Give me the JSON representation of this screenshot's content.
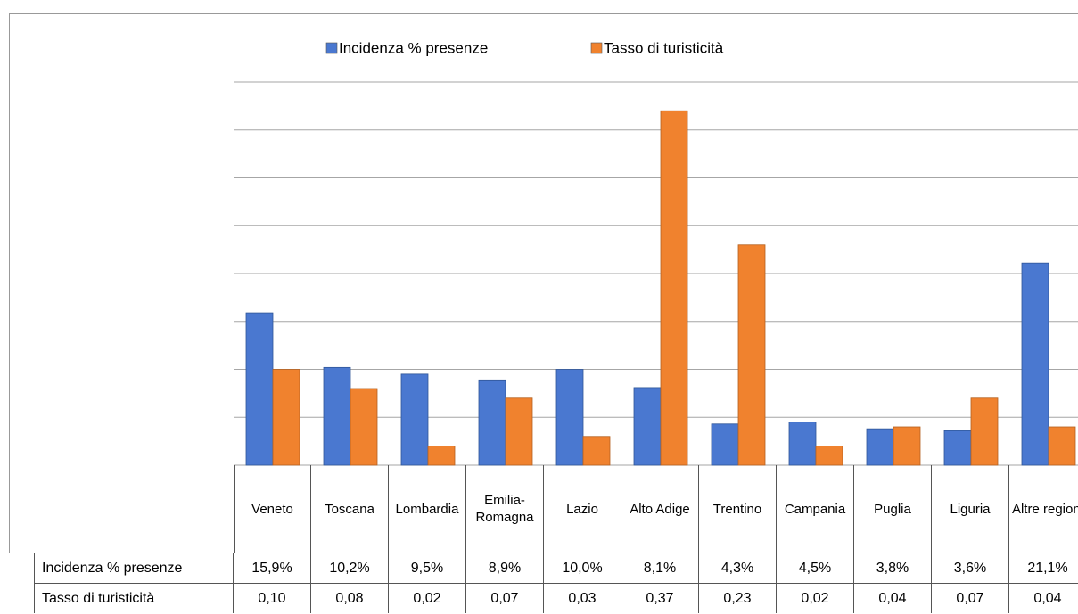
{
  "chart_data": {
    "type": "bar",
    "categories": [
      "Veneto",
      "Toscana",
      "Lombardia",
      "Emilia-Romagna",
      "Lazio",
      "Alto Adige",
      "Trentino",
      "Campania",
      "Puglia",
      "Liguria",
      "Altre regioni"
    ],
    "series": [
      {
        "name": "Incidenza % presenze",
        "color": "#4a78d0",
        "values": [
          15.9,
          10.2,
          9.5,
          8.9,
          10.0,
          8.1,
          4.3,
          4.5,
          3.8,
          3.6,
          21.1
        ],
        "value_labels": [
          "15,9%",
          "10,2%",
          "9,5%",
          "8,9%",
          "10,0%",
          "8,1%",
          "4,3%",
          "4,5%",
          "3,8%",
          "3,6%",
          "21,1%"
        ]
      },
      {
        "name": "Tasso di turisticità",
        "color": "#f0822e",
        "axis": "y2",
        "values": [
          0.1,
          0.08,
          0.02,
          0.07,
          0.03,
          0.37,
          0.23,
          0.02,
          0.04,
          0.07,
          0.04
        ],
        "value_labels": [
          "0,10",
          "0,08",
          "0,02",
          "0,07",
          "0,03",
          "0,37",
          "0,23",
          "0,02",
          "0,04",
          "0,07",
          "0,04"
        ]
      }
    ],
    "ylim": [
      0,
      40
    ],
    "yticks": [
      0,
      5,
      10,
      15,
      20,
      25,
      30,
      35,
      40
    ],
    "y2lim": [
      0,
      0.4
    ],
    "grid": true,
    "legend": "top"
  }
}
